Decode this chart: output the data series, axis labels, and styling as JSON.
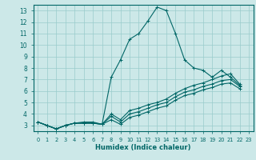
{
  "xlabel": "Humidex (Indice chaleur)",
  "ylabel": "",
  "bg_color": "#cce8e8",
  "grid_color": "#99cccc",
  "line_color": "#006666",
  "xlim": [
    -0.5,
    23.5
  ],
  "ylim": [
    2.5,
    13.5
  ],
  "xticks": [
    0,
    1,
    2,
    3,
    4,
    5,
    6,
    7,
    8,
    9,
    10,
    11,
    12,
    13,
    14,
    15,
    16,
    17,
    18,
    19,
    20,
    21,
    22,
    23
  ],
  "yticks": [
    3,
    4,
    5,
    6,
    7,
    8,
    9,
    10,
    11,
    12,
    13
  ],
  "series": [
    [
      3.3,
      3.0,
      2.7,
      3.0,
      3.2,
      3.3,
      3.3,
      3.1,
      7.2,
      8.7,
      10.5,
      11.0,
      12.1,
      13.3,
      13.0,
      11.0,
      8.7,
      8.0,
      7.8,
      7.2,
      7.8,
      7.2,
      6.5
    ],
    [
      3.3,
      3.0,
      2.7,
      3.0,
      3.2,
      3.2,
      3.2,
      3.1,
      4.0,
      3.5,
      4.3,
      4.5,
      4.8,
      5.0,
      5.3,
      5.8,
      6.2,
      6.5,
      6.7,
      7.0,
      7.3,
      7.5,
      6.6
    ],
    [
      3.3,
      3.0,
      2.7,
      3.0,
      3.2,
      3.2,
      3.2,
      3.1,
      3.8,
      3.3,
      4.0,
      4.2,
      4.5,
      4.8,
      5.0,
      5.5,
      5.9,
      6.1,
      6.4,
      6.6,
      6.9,
      7.0,
      6.4
    ],
    [
      3.3,
      3.0,
      2.7,
      3.0,
      3.2,
      3.2,
      3.2,
      3.1,
      3.5,
      3.1,
      3.7,
      3.9,
      4.2,
      4.5,
      4.7,
      5.2,
      5.6,
      5.8,
      6.1,
      6.3,
      6.6,
      6.7,
      6.2
    ]
  ]
}
